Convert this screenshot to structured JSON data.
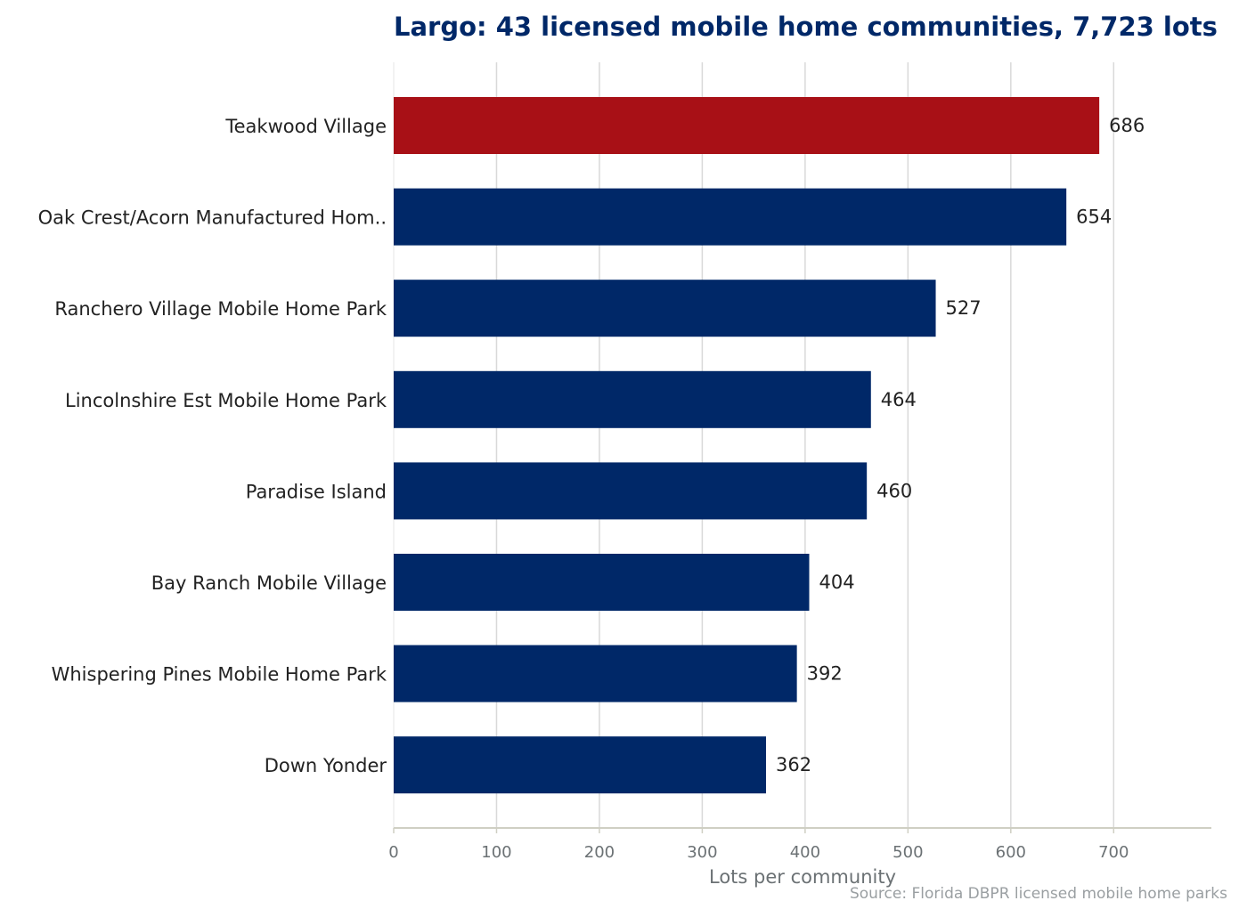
{
  "chart_data": {
    "type": "bar",
    "orientation": "horizontal",
    "title": "Largo: 43 licensed mobile home communities, 7,723 lots",
    "xlabel": "Lots per community",
    "ylabel": "",
    "source": "Source: Florida DBPR licensed mobile home parks",
    "categories": [
      "Teakwood Village",
      "Oak Crest/Acorn Manufactured Hom..",
      "Ranchero Village Mobile Home Park",
      "Lincolnshire Est Mobile Home Park",
      "Paradise Island",
      "Bay Ranch Mobile Village",
      "Whispering Pines Mobile Home Park",
      "Down Yonder"
    ],
    "values": [
      686,
      654,
      527,
      464,
      460,
      404,
      392,
      362
    ],
    "xlim": [
      0,
      795
    ],
    "xticks": [
      0,
      100,
      200,
      300,
      400,
      500,
      600,
      700
    ],
    "grid": true,
    "highlight_index": 0,
    "colors": {
      "bar": "#002868",
      "highlight": "#a81016",
      "grid": "#d9d9d9",
      "axis": "#cfcfc3"
    }
  }
}
